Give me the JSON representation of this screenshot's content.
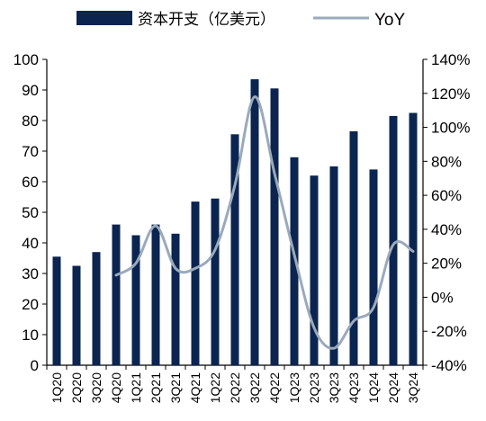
{
  "chart_data": {
    "type": "bar",
    "categories": [
      "1Q20",
      "2Q20",
      "3Q20",
      "4Q20",
      "1Q21",
      "2Q21",
      "3Q21",
      "4Q21",
      "1Q22",
      "2Q22",
      "3Q22",
      "4Q22",
      "1Q23",
      "2Q23",
      "3Q23",
      "4Q23",
      "1Q24",
      "2Q24",
      "3Q24"
    ],
    "series": [
      {
        "name": "资本开支（亿美元）",
        "type": "bar",
        "axis": "left",
        "color": "#0b2550",
        "values": [
          35.5,
          32.5,
          37,
          46,
          42.5,
          46,
          43,
          53.5,
          54.5,
          75.5,
          93.5,
          90.5,
          68,
          62,
          65,
          76.5,
          64,
          81.5,
          82.5
        ]
      },
      {
        "name": "YoY",
        "type": "line",
        "axis": "right",
        "color": "#9aaabb",
        "values": [
          null,
          null,
          null,
          13,
          20,
          42,
          17,
          17,
          28,
          66,
          118,
          73,
          25,
          -18,
          -30,
          -14,
          -6,
          31,
          27
        ]
      }
    ],
    "y_left": {
      "min": 0,
      "max": 100,
      "step": 10,
      "ticks": [
        "0",
        "10",
        "20",
        "30",
        "40",
        "50",
        "60",
        "70",
        "80",
        "90",
        "100"
      ]
    },
    "y_right": {
      "min": -40,
      "max": 140,
      "step": 20,
      "ticks": [
        "-40%",
        "-20%",
        "0%",
        "20%",
        "40%",
        "60%",
        "80%",
        "100%",
        "120%",
        "140%"
      ]
    },
    "legend": {
      "placement": "top",
      "bar_label": "资本开支（亿美元）",
      "line_label": "YoY"
    },
    "grid": false
  }
}
